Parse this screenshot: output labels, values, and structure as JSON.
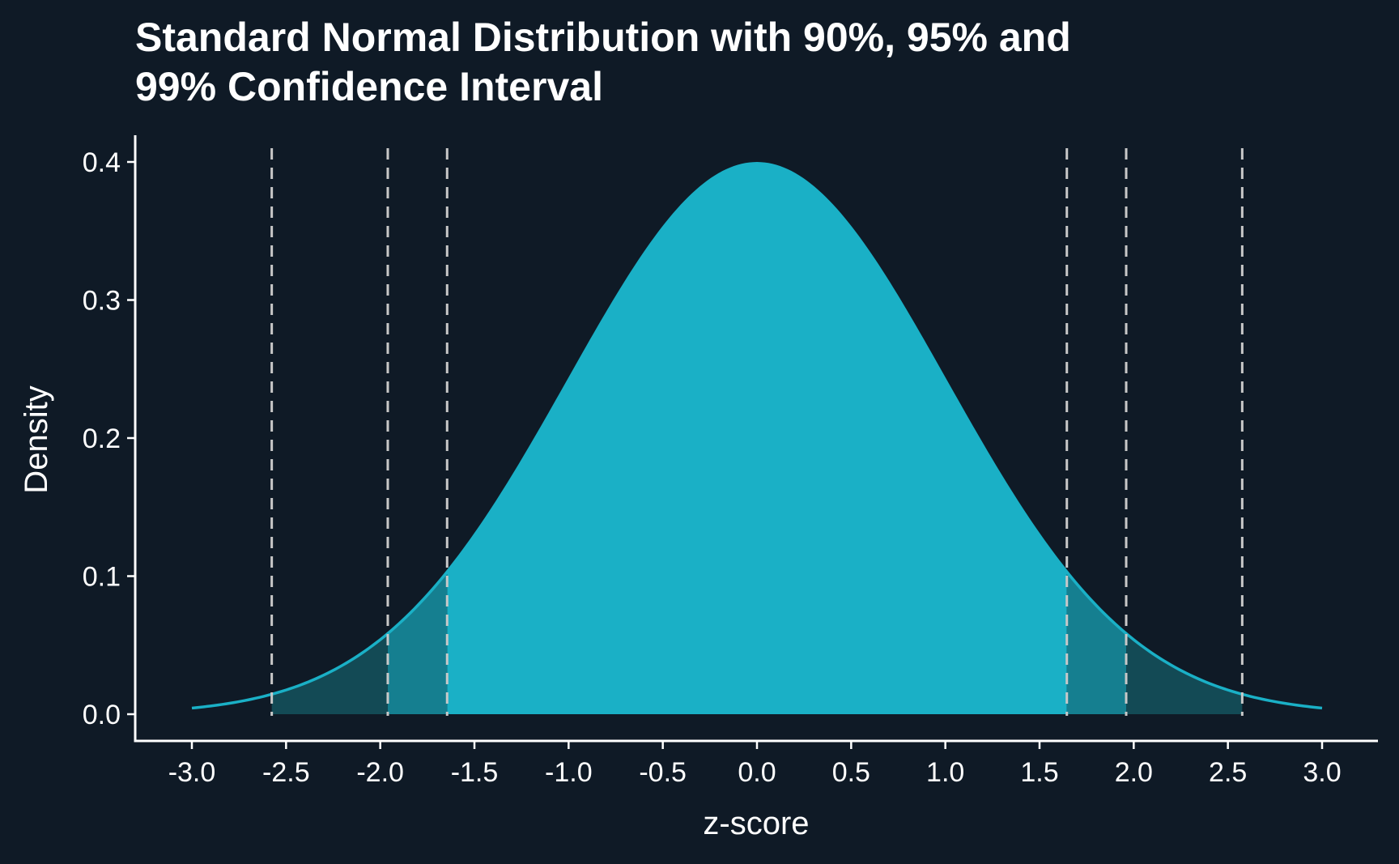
{
  "chart_data": {
    "type": "area",
    "title_lines": [
      "Standard Normal Distribution with 90%, 95% and",
      "99% Confidence Interval"
    ],
    "xlabel": "z-score",
    "ylabel": "Density",
    "xlim": [
      -3.0,
      3.0
    ],
    "ylim": [
      0.0,
      0.4
    ],
    "x_ticks": [
      "-3.0",
      "-2.5",
      "-2.0",
      "-1.5",
      "-1.0",
      "-0.5",
      "0.0",
      "0.5",
      "1.0",
      "1.5",
      "2.0",
      "2.5",
      "3.0"
    ],
    "y_ticks": [
      "0.0",
      "0.1",
      "0.2",
      "0.3",
      "0.4"
    ],
    "distribution": {
      "mean": 0,
      "sd": 1
    },
    "critical_values": [
      {
        "level": "90%",
        "z": 1.645
      },
      {
        "level": "95%",
        "z": 1.96
      },
      {
        "level": "99%",
        "z": 2.576
      }
    ],
    "shaded_regions": [
      {
        "from": -1.645,
        "to": 1.645,
        "color": "#1ab0c6"
      },
      {
        "from": -1.96,
        "to": -1.645,
        "color": "#157f90"
      },
      {
        "from": 1.645,
        "to": 1.96,
        "color": "#157f90"
      },
      {
        "from": -2.576,
        "to": -1.96,
        "color": "#134a55"
      },
      {
        "from": 1.96,
        "to": 2.576,
        "color": "#134a55"
      }
    ],
    "grid": false,
    "legend": "none"
  },
  "colors": {
    "background": "#0f1a26",
    "curve": "#1ab0c6",
    "axis": "#ffffff",
    "text": "#ffffff",
    "dashed_lines": "#c8c8c8"
  }
}
